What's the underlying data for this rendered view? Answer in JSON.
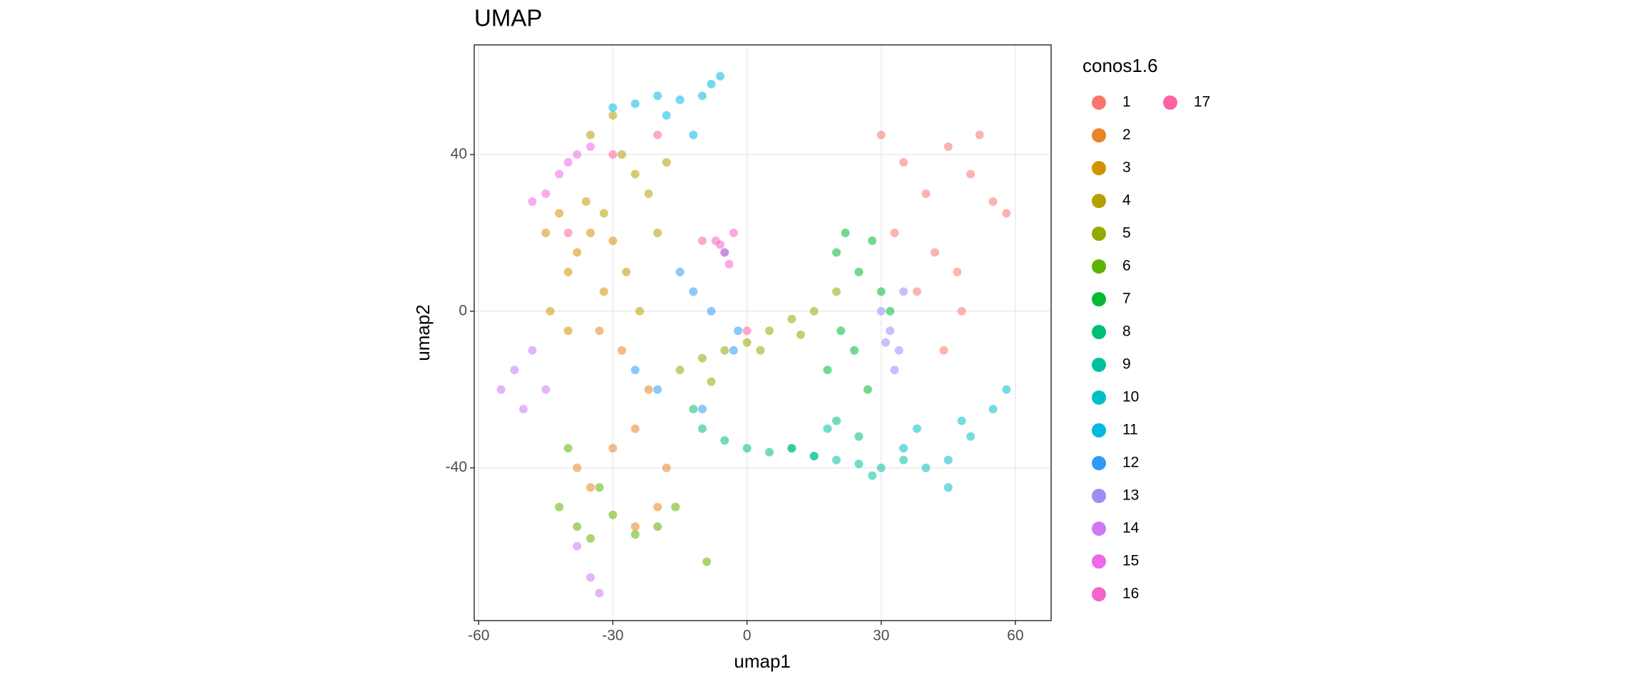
{
  "chart_data": {
    "type": "scatter",
    "title": "UMAP",
    "x_label": "umap1",
    "y_label": "umap2",
    "legend_title": "conos1.6",
    "xlim": [
      -61,
      68
    ],
    "ylim": [
      -79,
      68
    ],
    "xticks": [
      -60,
      -30,
      0,
      30,
      60
    ],
    "yticks": [
      -40,
      0,
      40
    ],
    "grid": true,
    "series": [
      {
        "name": "1",
        "color": "#F8766D",
        "x": [
          30,
          35,
          40,
          45,
          50,
          55,
          58,
          42,
          38,
          48,
          52,
          33,
          44,
          47
        ],
        "y": [
          45,
          38,
          30,
          42,
          35,
          28,
          25,
          15,
          5,
          0,
          45,
          20,
          -10,
          10
        ]
      },
      {
        "name": "2",
        "color": "#E88526",
        "x": [
          -38,
          -35,
          -30,
          -25,
          -22,
          -20,
          -28,
          -33,
          -25,
          -18
        ],
        "y": [
          -40,
          -45,
          -35,
          -30,
          -20,
          -50,
          -10,
          -5,
          -55,
          -40
        ]
      },
      {
        "name": "3",
        "color": "#D39200",
        "x": [
          -45,
          -42,
          -40,
          -38,
          -35,
          -32,
          -44,
          -36,
          -40,
          -30
        ],
        "y": [
          20,
          25,
          10,
          15,
          20,
          5,
          0,
          28,
          -5,
          18
        ]
      },
      {
        "name": "4",
        "color": "#B79F00",
        "x": [
          -35,
          -30,
          -28,
          -25,
          -22,
          -20,
          -32,
          -27,
          -18,
          -24
        ],
        "y": [
          45,
          50,
          40,
          35,
          30,
          20,
          25,
          10,
          38,
          0
        ]
      },
      {
        "name": "5",
        "color": "#93AA00",
        "x": [
          -15,
          -10,
          -5,
          0,
          5,
          10,
          15,
          -8,
          3,
          12,
          20
        ],
        "y": [
          -15,
          -12,
          -10,
          -8,
          -5,
          -2,
          0,
          -18,
          -10,
          -6,
          5
        ]
      },
      {
        "name": "6",
        "color": "#5EB300",
        "x": [
          -42,
          -38,
          -35,
          -30,
          -25,
          -20,
          -16,
          -9,
          -40,
          -33
        ],
        "y": [
          -50,
          -55,
          -58,
          -52,
          -57,
          -55,
          -50,
          -64,
          -35,
          -45
        ]
      },
      {
        "name": "7",
        "color": "#00BA38",
        "x": [
          20,
          22,
          25,
          28,
          30,
          18,
          24,
          27,
          32,
          21
        ],
        "y": [
          15,
          20,
          10,
          18,
          5,
          -15,
          -10,
          -20,
          0,
          -5
        ]
      },
      {
        "name": "8",
        "color": "#00BF74",
        "x": [
          -10,
          -5,
          0,
          5,
          10,
          15,
          20,
          25,
          -12
        ],
        "y": [
          -30,
          -33,
          -35,
          -36,
          -35,
          -37,
          -28,
          -32,
          -25
        ]
      },
      {
        "name": "9",
        "color": "#00C19F",
        "x": [
          10,
          15,
          20,
          25,
          30,
          35,
          18,
          28
        ],
        "y": [
          -35,
          -37,
          -38,
          -39,
          -40,
          -38,
          -30,
          -42
        ]
      },
      {
        "name": "10",
        "color": "#00BFC4",
        "x": [
          35,
          40,
          45,
          50,
          55,
          58,
          45,
          38,
          48
        ],
        "y": [
          -35,
          -40,
          -38,
          -32,
          -25,
          -20,
          -45,
          -30,
          -28
        ]
      },
      {
        "name": "11",
        "color": "#00B9E3",
        "x": [
          -30,
          -25,
          -20,
          -15,
          -10,
          -8,
          -6,
          -18,
          -12
        ],
        "y": [
          52,
          53,
          55,
          54,
          55,
          58,
          60,
          50,
          45
        ]
      },
      {
        "name": "12",
        "color": "#2E9BF7",
        "x": [
          -15,
          -12,
          -8,
          -5,
          -2,
          -20,
          -10,
          -25,
          -3
        ],
        "y": [
          10,
          5,
          0,
          15,
          -5,
          -20,
          -25,
          -15,
          -10
        ]
      },
      {
        "name": "13",
        "color": "#9D8DF7",
        "x": [
          30,
          32,
          34,
          33,
          35,
          31
        ],
        "y": [
          0,
          -5,
          -10,
          -15,
          5,
          -8
        ]
      },
      {
        "name": "14",
        "color": "#CF78F5",
        "x": [
          -55,
          -52,
          -50,
          -48,
          -45,
          -35,
          -38,
          -33
        ],
        "y": [
          -20,
          -15,
          -25,
          -10,
          -20,
          -68,
          -60,
          -72
        ]
      },
      {
        "name": "15",
        "color": "#EE68E8",
        "x": [
          -45,
          -42,
          -40,
          -38,
          -35,
          -48
        ],
        "y": [
          30,
          35,
          38,
          40,
          42,
          28
        ]
      },
      {
        "name": "16",
        "color": "#F564C8",
        "x": [
          -7,
          -5,
          -3,
          -6,
          -4
        ],
        "y": [
          18,
          15,
          20,
          17,
          12
        ]
      },
      {
        "name": "17",
        "color": "#FF61A6",
        "x": [
          -40,
          -20,
          0,
          -10,
          -30
        ],
        "y": [
          20,
          45,
          -5,
          18,
          40
        ]
      }
    ]
  }
}
